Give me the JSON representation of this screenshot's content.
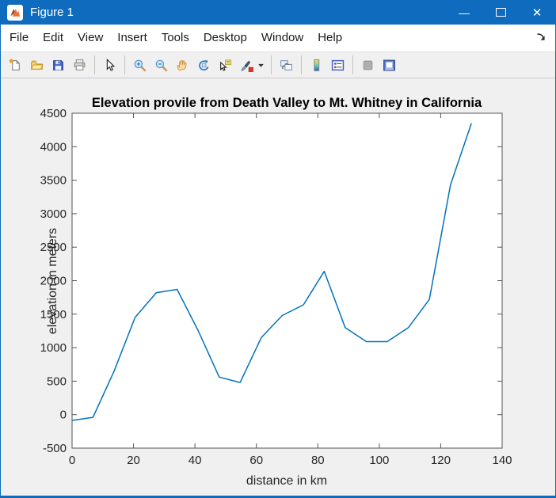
{
  "window": {
    "title": "Figure 1",
    "controls": {
      "minimize_glyph": "—",
      "close_glyph": "✕"
    }
  },
  "menubar": {
    "items": [
      "File",
      "Edit",
      "View",
      "Insert",
      "Tools",
      "Desktop",
      "Window",
      "Help"
    ],
    "dock_icon": "dock-figure"
  },
  "toolbar": {
    "buttons": [
      "new-figure",
      "open-file",
      "save-figure",
      "print-figure",
      "|",
      "edit-plot",
      "|",
      "zoom-in",
      "zoom-out",
      "pan",
      "rotate-3d",
      "data-cursor",
      "brush",
      "brush-dropdown",
      "|",
      "link-plot",
      "|",
      "insert-colorbar",
      "insert-legend",
      "|",
      "hide-plot-tools",
      "show-plot-tools"
    ],
    "disabled": [
      "hide-plot-tools"
    ]
  },
  "colors": {
    "titlebar_blue": "#0e6bbd",
    "figure_background": "#f0f0f0",
    "plot_background": "#ffffff",
    "axis_color": "#555555",
    "line_color": "#0072BD"
  },
  "chart_data": {
    "type": "line",
    "title": "Elevation provile from Death Valley to Mt. Whitney in California",
    "xlabel": "distance in km",
    "ylabel": "elevation in meters",
    "xlim": [
      0,
      140
    ],
    "ylim": [
      -500,
      4500
    ],
    "xticks": [
      0,
      20,
      40,
      60,
      80,
      100,
      120,
      140
    ],
    "yticks": [
      -500,
      0,
      500,
      1000,
      1500,
      2000,
      2500,
      3000,
      3500,
      4000,
      4500
    ],
    "grid": false,
    "legend": null,
    "line_color": "#0072BD",
    "series": [
      {
        "name": "elevation",
        "x": [
          0,
          6.8,
          13.7,
          20.5,
          27.4,
          34.2,
          41.1,
          47.9,
          54.7,
          61.6,
          68.4,
          75.3,
          82.1,
          88.9,
          95.8,
          102.6,
          109.5,
          116.3,
          123.2,
          130
        ],
        "y": [
          -86,
          -40,
          650,
          1450,
          1820,
          1870,
          1250,
          560,
          480,
          1150,
          1480,
          1640,
          2140,
          1300,
          1090,
          1090,
          1300,
          1720,
          3430,
          4350
        ]
      }
    ]
  }
}
